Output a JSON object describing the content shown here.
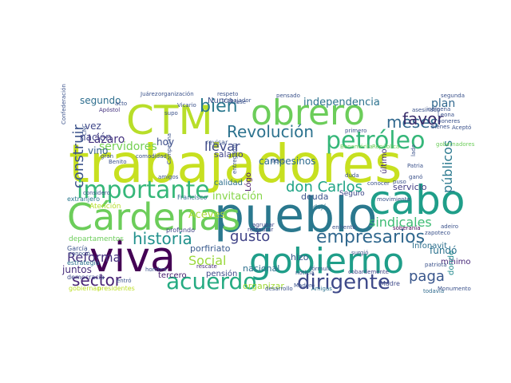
{
  "words": [
    {
      "text": "trabajadores",
      "color": "#c7e020"
    },
    {
      "text": "pueblo",
      "color": "#2a788e"
    },
    {
      "text": "viva",
      "color": "#440154"
    },
    {
      "text": "gobierno",
      "color": "#1f9e89"
    },
    {
      "text": "Cárdenas",
      "color": "#6ccd5a"
    },
    {
      "text": "obrero",
      "color": "#6ccd5a"
    },
    {
      "text": "CTM",
      "color": "#b8de29"
    },
    {
      "text": "cabo",
      "color": "#1f9e89"
    },
    {
      "text": "importante",
      "color": "#35b779"
    },
    {
      "text": "petróleo",
      "color": "#35b779"
    },
    {
      "text": "acuerdo",
      "color": "#25ab82"
    },
    {
      "text": "dirigente",
      "color": "#3e4989"
    },
    {
      "text": "Revolución",
      "color": "#2c728e"
    },
    {
      "text": "historia",
      "color": "#21918c"
    },
    {
      "text": "empresarios",
      "color": "#31688e"
    },
    {
      "text": "meses",
      "color": "#31688e"
    },
    {
      "text": "bien",
      "color": "#2a788e"
    },
    {
      "text": "construir",
      "color": "#3b528b"
    },
    {
      "text": "don Carlos",
      "color": "#20a486"
    },
    {
      "text": "favor",
      "color": "#3b2f6c"
    },
    {
      "text": "gusto",
      "color": "#404387"
    },
    {
      "text": "sector",
      "color": "#482475"
    },
    {
      "text": "paga",
      "color": "#39568c"
    },
    {
      "text": "sindicales",
      "color": "#3dbc74"
    },
    {
      "text": "Social",
      "color": "#9bd93c"
    },
    {
      "text": "Reforma",
      "color": "#46327e"
    },
    {
      "text": "servidores",
      "color": "#75d054"
    },
    {
      "text": "públicos",
      "color": "#2a788e"
    },
    {
      "text": "llevar",
      "color": "#3e4989"
    },
    {
      "text": "invitación",
      "color": "#86d549"
    },
    {
      "text": "independencia",
      "color": "#2c728e"
    },
    {
      "text": "Aceves",
      "color": "#a8db34"
    },
    {
      "text": "plan",
      "color": "#31688e"
    },
    {
      "text": "campesinos",
      "color": "#2f6b8e"
    },
    {
      "text": "Lázaro",
      "color": "#46337f"
    },
    {
      "text": "segundo",
      "color": "#2e6e8e"
    },
    {
      "text": "vino",
      "color": "#355e8d"
    },
    {
      "text": "hoy",
      "color": "#3d4e8a"
    },
    {
      "text": "salario",
      "color": "#404387"
    },
    {
      "text": "nación",
      "color": "#414487"
    },
    {
      "text": "porfiriato",
      "color": "#38598c"
    },
    {
      "text": "servicio",
      "color": "#433e85"
    },
    {
      "text": "nacional",
      "color": "#2d708e"
    },
    {
      "text": "juntos",
      "color": "#472d7b"
    },
    {
      "text": "hizo",
      "color": "#38598c"
    },
    {
      "text": "fundó",
      "color": "#2c728e"
    },
    {
      "text": "deuda",
      "color": "#3b528b"
    },
    {
      "text": "Nunca",
      "color": "#3b528b"
    },
    {
      "text": "Lógo",
      "color": "#481a6c"
    },
    {
      "text": "calidad",
      "color": "#2d708e"
    },
    {
      "text": "organizar",
      "color": "#a0da39"
    },
    {
      "text": "Infonavit",
      "color": "#2d708e"
    },
    {
      "text": "tercero",
      "color": "#481f70"
    },
    {
      "text": "pensión",
      "color": "#3e4989"
    },
    {
      "text": "mínimo",
      "color": "#482878"
    },
    {
      "text": "donde",
      "color": "#238a8d"
    },
    {
      "text": "último",
      "color": "#472f7d"
    },
    {
      "text": "vez",
      "color": "#3f4788"
    },
    {
      "text": "Seguro",
      "color": "#3e4989"
    },
    {
      "text": "extranjero",
      "color": "#2a788e"
    },
    {
      "text": "dejó",
      "color": "#2a788e"
    },
    {
      "text": "Francisco",
      "color": "#2f6c8e"
    },
    {
      "text": "Atención",
      "color": "#b5de2b"
    },
    {
      "text": "departamentos",
      "color": "#6ccd5a"
    },
    {
      "text": "profundo",
      "color": "#414487"
    },
    {
      "text": "García",
      "color": "#3b528b"
    },
    {
      "text": "estrategia",
      "color": "#2c728e"
    },
    {
      "text": "democracia",
      "color": "#3e4a89"
    },
    {
      "text": "gobiernan",
      "color": "#bddf26"
    },
    {
      "text": "presidentes",
      "color": "#bddf26"
    },
    {
      "text": "entró",
      "color": "#3b528b"
    },
    {
      "text": "desarrollo",
      "color": "#3b528b"
    },
    {
      "text": "Amigas",
      "color": "#2c728e"
    },
    {
      "text": "Madre",
      "color": "#3e4989"
    },
    {
      "text": "todavía",
      "color": "#2f6b8e"
    },
    {
      "text": "Monumento",
      "color": "#3b528b"
    },
    {
      "text": "noticia",
      "color": "#3b528b"
    },
    {
      "text": "cobardemente",
      "color": "#414487"
    },
    {
      "text": "restaurar",
      "color": "#3f4788"
    },
    {
      "text": "agrupar",
      "color": "#3f4788"
    },
    {
      "text": "enfrentó",
      "color": "#3b528b"
    },
    {
      "text": "soberanía",
      "color": "#440154"
    },
    {
      "text": "adeiro",
      "color": "#3b528b"
    },
    {
      "text": "rescate",
      "color": "#472c7a"
    },
    {
      "text": "Vicario",
      "color": "#3b528b"
    },
    {
      "text": "Apóstol",
      "color": "#46337f"
    },
    {
      "text": "Juárez",
      "color": "#3b528b"
    },
    {
      "text": "organización",
      "color": "#3b528b"
    },
    {
      "text": "respeto",
      "color": "#3b528b"
    },
    {
      "text": "pensado",
      "color": "#3b528b"
    },
    {
      "text": "clase",
      "color": "#3b528b"
    },
    {
      "text": "Leona",
      "color": "#3b528b"
    },
    {
      "text": "poneres",
      "color": "#3b528b"
    },
    {
      "text": "asesinado",
      "color": "#3b528b"
    },
    {
      "text": "indígena",
      "color": "#3b528b"
    },
    {
      "text": "segunda",
      "color": "#3b528b"
    },
    {
      "text": "bienes",
      "color": "#3b528b"
    },
    {
      "text": "Aceptó",
      "color": "#3b528b"
    },
    {
      "text": "gobernadores",
      "color": "#6ccd5a"
    },
    {
      "text": "Benemérita",
      "color": "#6ccd5a"
    },
    {
      "text": "República",
      "color": "#6ccd5a"
    },
    {
      "text": "Patria",
      "color": "#3b528b"
    },
    {
      "text": "Benito",
      "color": "#3b528b"
    },
    {
      "text": "gran",
      "color": "#3b528b"
    },
    {
      "text": "Campesina",
      "color": "#3b528b"
    },
    {
      "text": "comodidad",
      "color": "#3b528b"
    },
    {
      "text": "llevó",
      "color": "#3b528b"
    },
    {
      "text": "acto",
      "color": "#3b528b"
    },
    {
      "text": "supo",
      "color": "#3b528b"
    },
    {
      "text": "amigos",
      "color": "#3b528b"
    },
    {
      "text": "considero",
      "color": "#3b528b"
    },
    {
      "text": "conoció",
      "color": "#3b528b"
    },
    {
      "text": "hombre",
      "color": "#3b528b"
    },
    {
      "text": "surgió",
      "color": "#3b528b"
    },
    {
      "text": "patriota",
      "color": "#3b528b"
    },
    {
      "text": "zapoteco",
      "color": "#3b528b"
    },
    {
      "text": "movimiento",
      "color": "#3b528b"
    },
    {
      "text": "puso",
      "color": "#3b528b"
    },
    {
      "text": "ganó",
      "color": "#3b528b"
    },
    {
      "text": "conocer",
      "color": "#3b528b"
    },
    {
      "text": "duda",
      "color": "#3b528b"
    },
    {
      "text": "Madero",
      "color": "#3b528b"
    },
    {
      "text": "Confederación",
      "color": "#3b528b"
    },
    {
      "text": "CNC",
      "color": "#3b528b"
    },
    {
      "text": "fórmula",
      "color": "#3b528b"
    },
    {
      "text": "trabajador",
      "color": "#3b528b"
    },
    {
      "text": "revisar",
      "color": "#3b528b"
    },
    {
      "text": "entregaron",
      "color": "#3b528b"
    },
    {
      "text": "primero",
      "color": "#3b528b"
    },
    {
      "text": "lado",
      "color": "#3b528b"
    }
  ]
}
